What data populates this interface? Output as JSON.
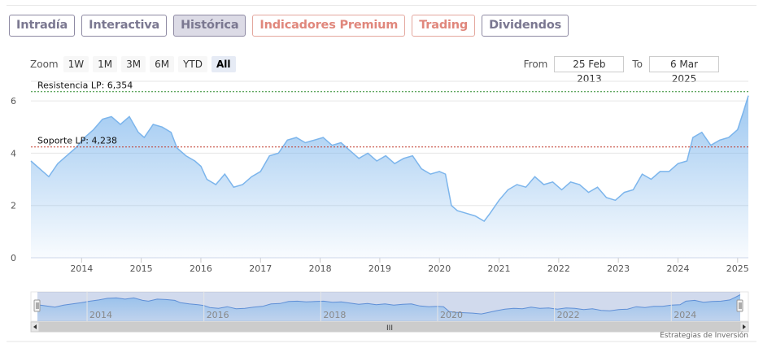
{
  "tabs": [
    {
      "label": "Intradía",
      "active": false,
      "premium": false
    },
    {
      "label": "Interactiva",
      "active": false,
      "premium": false
    },
    {
      "label": "Histórica",
      "active": true,
      "premium": false
    },
    {
      "label": "Indicadores Premium",
      "active": false,
      "premium": true
    },
    {
      "label": "Trading",
      "active": false,
      "premium": true
    },
    {
      "label": "Dividendos",
      "active": false,
      "premium": false
    }
  ],
  "zoom": {
    "label": "Zoom",
    "buttons": [
      "1W",
      "1M",
      "3M",
      "6M",
      "YTD",
      "All"
    ],
    "selected": "All"
  },
  "range": {
    "from_label": "From",
    "from_value": "25 Feb 2013",
    "to_label": "To",
    "to_value": "6 Mar 2025"
  },
  "colors": {
    "line": "#7cb5ec",
    "resistance": "#2e8b2e",
    "support": "#c0392b"
  },
  "chart_data": {
    "type": "area",
    "x_start": 2013.15,
    "x_end": 2025.18,
    "ylim": [
      0,
      6.5
    ],
    "y_ticks": [
      "0",
      "2",
      "4",
      "6"
    ],
    "x_ticks": [
      "2014",
      "2015",
      "2016",
      "2017",
      "2018",
      "2019",
      "2020",
      "2021",
      "2022",
      "2023",
      "2024",
      "2025"
    ],
    "levels": [
      {
        "label": "Resistencia LP: 6,354",
        "value": 6.354,
        "color": "#2e8b2e"
      },
      {
        "label": "Soporte LP: 4,238",
        "value": 4.238,
        "color": "#c0392b"
      }
    ],
    "series": [
      {
        "x": [
          2013.15,
          2013.3,
          2013.45,
          2013.6,
          2013.75,
          2013.9,
          2014.05,
          2014.2,
          2014.35,
          2014.5,
          2014.65,
          2014.8,
          2014.95,
          2015.05,
          2015.2,
          2015.35,
          2015.5,
          2015.6,
          2015.75,
          2015.9,
          2016.0,
          2016.1,
          2016.25,
          2016.4,
          2016.55,
          2016.7,
          2016.85,
          2017.0,
          2017.15,
          2017.3,
          2017.45,
          2017.6,
          2017.75,
          2017.9,
          2018.05,
          2018.2,
          2018.35,
          2018.5,
          2018.65,
          2018.8,
          2018.95,
          2019.1,
          2019.25,
          2019.4,
          2019.55,
          2019.7,
          2019.85,
          2020.0,
          2020.1,
          2020.2,
          2020.3,
          2020.45,
          2020.6,
          2020.75,
          2020.85,
          2021.0,
          2021.15,
          2021.3,
          2021.45,
          2021.6,
          2021.75,
          2021.9,
          2022.05,
          2022.2,
          2022.35,
          2022.5,
          2022.65,
          2022.8,
          2022.95,
          2023.1,
          2023.25,
          2023.4,
          2023.55,
          2023.7,
          2023.85,
          2024.0,
          2024.15,
          2024.25,
          2024.4,
          2024.55,
          2024.7,
          2024.85,
          2025.0,
          2025.1,
          2025.18
        ],
        "values": [
          3.7,
          3.4,
          3.1,
          3.6,
          3.9,
          4.2,
          4.6,
          4.9,
          5.3,
          5.4,
          5.1,
          5.4,
          4.8,
          4.6,
          5.1,
          5.0,
          4.8,
          4.2,
          3.9,
          3.7,
          3.5,
          3.0,
          2.8,
          3.2,
          2.7,
          2.8,
          3.1,
          3.3,
          3.9,
          4.0,
          4.5,
          4.6,
          4.4,
          4.5,
          4.6,
          4.3,
          4.4,
          4.1,
          3.8,
          4.0,
          3.7,
          3.9,
          3.6,
          3.8,
          3.9,
          3.4,
          3.2,
          3.3,
          3.2,
          2.0,
          1.8,
          1.7,
          1.6,
          1.4,
          1.7,
          2.2,
          2.6,
          2.8,
          2.7,
          3.1,
          2.8,
          2.9,
          2.6,
          2.9,
          2.8,
          2.5,
          2.7,
          2.3,
          2.2,
          2.5,
          2.6,
          3.2,
          3.0,
          3.3,
          3.3,
          3.6,
          3.7,
          4.6,
          4.8,
          4.3,
          4.5,
          4.6,
          4.9,
          5.6,
          6.2
        ]
      }
    ]
  },
  "navigator": {
    "x_ticks": [
      "2014",
      "2016",
      "2018",
      "2020",
      "2022",
      "2024"
    ],
    "scrollbar_grip": "III"
  },
  "credit": "Estrategias de Inversión"
}
